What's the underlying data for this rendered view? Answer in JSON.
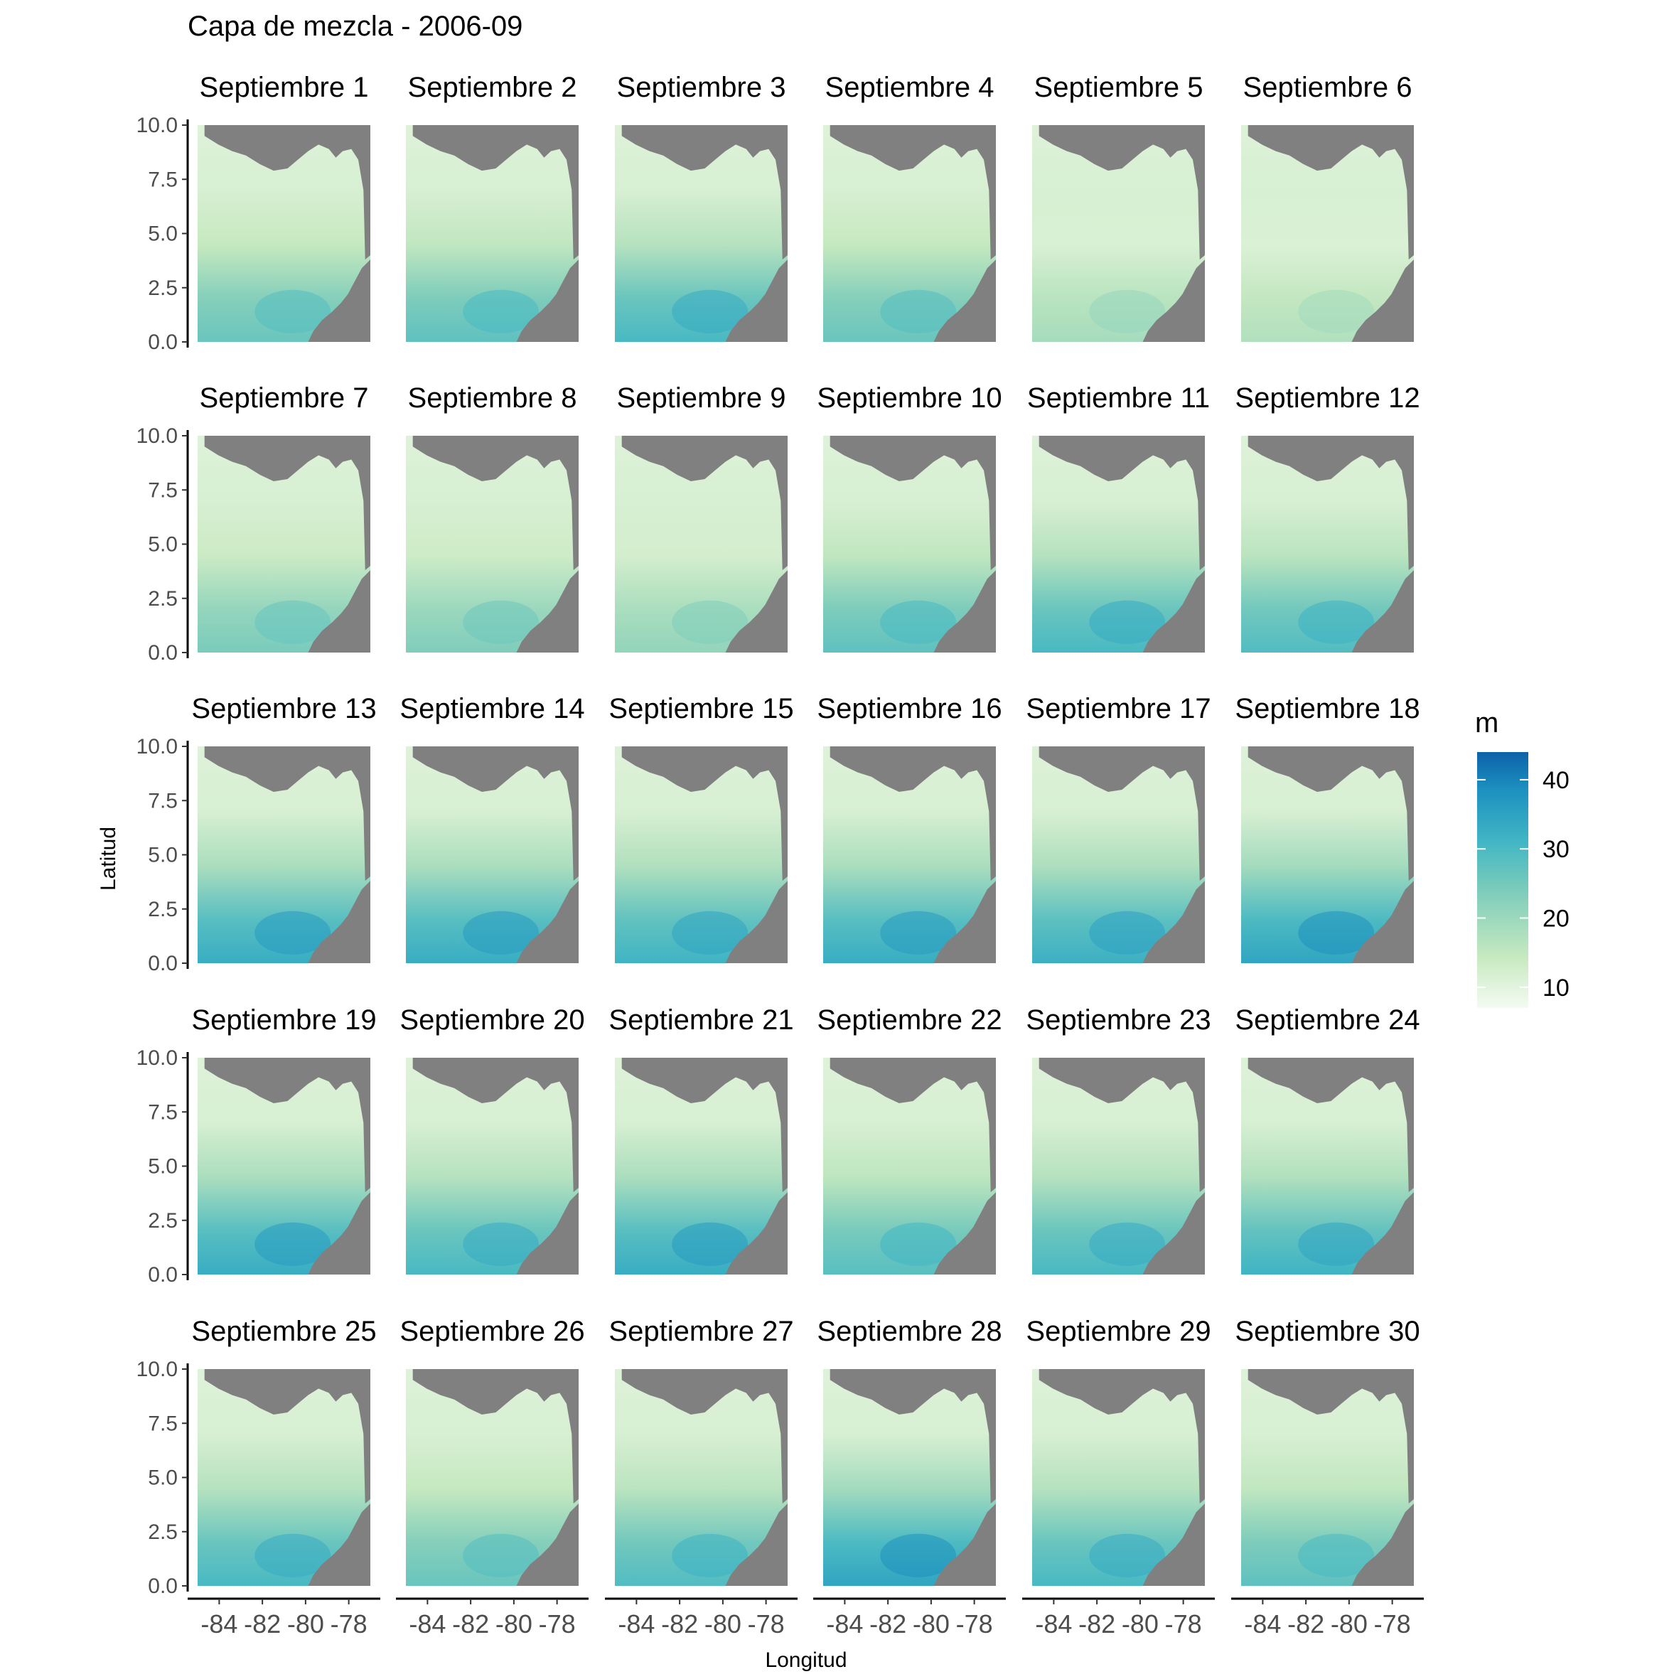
{
  "chart_data": {
    "type": "heatmap",
    "title": "Capa de mezcla - 2006-09",
    "xlabel": "Longitud",
    "ylabel": "Latitud",
    "x_ticks": [
      "-84",
      "-82",
      "-80",
      "-78"
    ],
    "y_ticks": [
      "0.0",
      "2.5",
      "5.0",
      "7.5",
      "10.0"
    ],
    "xlim": [
      -85,
      -77
    ],
    "ylim": [
      0,
      10
    ],
    "facet_rows": 5,
    "facet_cols": 6,
    "facets": [
      {
        "label": "Septiembre 1",
        "intensity": 0.45
      },
      {
        "label": "Septiembre 2",
        "intensity": 0.48
      },
      {
        "label": "Septiembre 3",
        "intensity": 0.55
      },
      {
        "label": "Septiembre 4",
        "intensity": 0.45
      },
      {
        "label": "Septiembre 5",
        "intensity": 0.28
      },
      {
        "label": "Septiembre 6",
        "intensity": 0.25
      },
      {
        "label": "Septiembre 7",
        "intensity": 0.4
      },
      {
        "label": "Septiembre 8",
        "intensity": 0.38
      },
      {
        "label": "Septiembre 9",
        "intensity": 0.33
      },
      {
        "label": "Septiembre 10",
        "intensity": 0.48
      },
      {
        "label": "Septiembre 11",
        "intensity": 0.55
      },
      {
        "label": "Septiembre 12",
        "intensity": 0.52
      },
      {
        "label": "Septiembre 13",
        "intensity": 0.62
      },
      {
        "label": "Septiembre 14",
        "intensity": 0.62
      },
      {
        "label": "Septiembre 15",
        "intensity": 0.58
      },
      {
        "label": "Septiembre 16",
        "intensity": 0.62
      },
      {
        "label": "Septiembre 17",
        "intensity": 0.6
      },
      {
        "label": "Septiembre 18",
        "intensity": 0.66
      },
      {
        "label": "Septiembre 19",
        "intensity": 0.62
      },
      {
        "label": "Septiembre 20",
        "intensity": 0.55
      },
      {
        "label": "Septiembre 21",
        "intensity": 0.62
      },
      {
        "label": "Septiembre 22",
        "intensity": 0.5
      },
      {
        "label": "Septiembre 23",
        "intensity": 0.55
      },
      {
        "label": "Septiembre 24",
        "intensity": 0.58
      },
      {
        "label": "Septiembre 25",
        "intensity": 0.55
      },
      {
        "label": "Septiembre 26",
        "intensity": 0.45
      },
      {
        "label": "Septiembre 27",
        "intensity": 0.52
      },
      {
        "label": "Septiembre 28",
        "intensity": 0.66
      },
      {
        "label": "Septiembre 29",
        "intensity": 0.55
      },
      {
        "label": "Septiembre 30",
        "intensity": 0.48
      }
    ],
    "colorbar": {
      "title": "m",
      "ticks": [
        "40",
        "30",
        "20",
        "10"
      ],
      "range": [
        7,
        44
      ],
      "colors": [
        "#f4fbf2",
        "#c7e9c0",
        "#7fcdbb",
        "#41b6c4",
        "#1d91c0",
        "#0c62a8"
      ],
      "land_color": "#808080"
    }
  }
}
